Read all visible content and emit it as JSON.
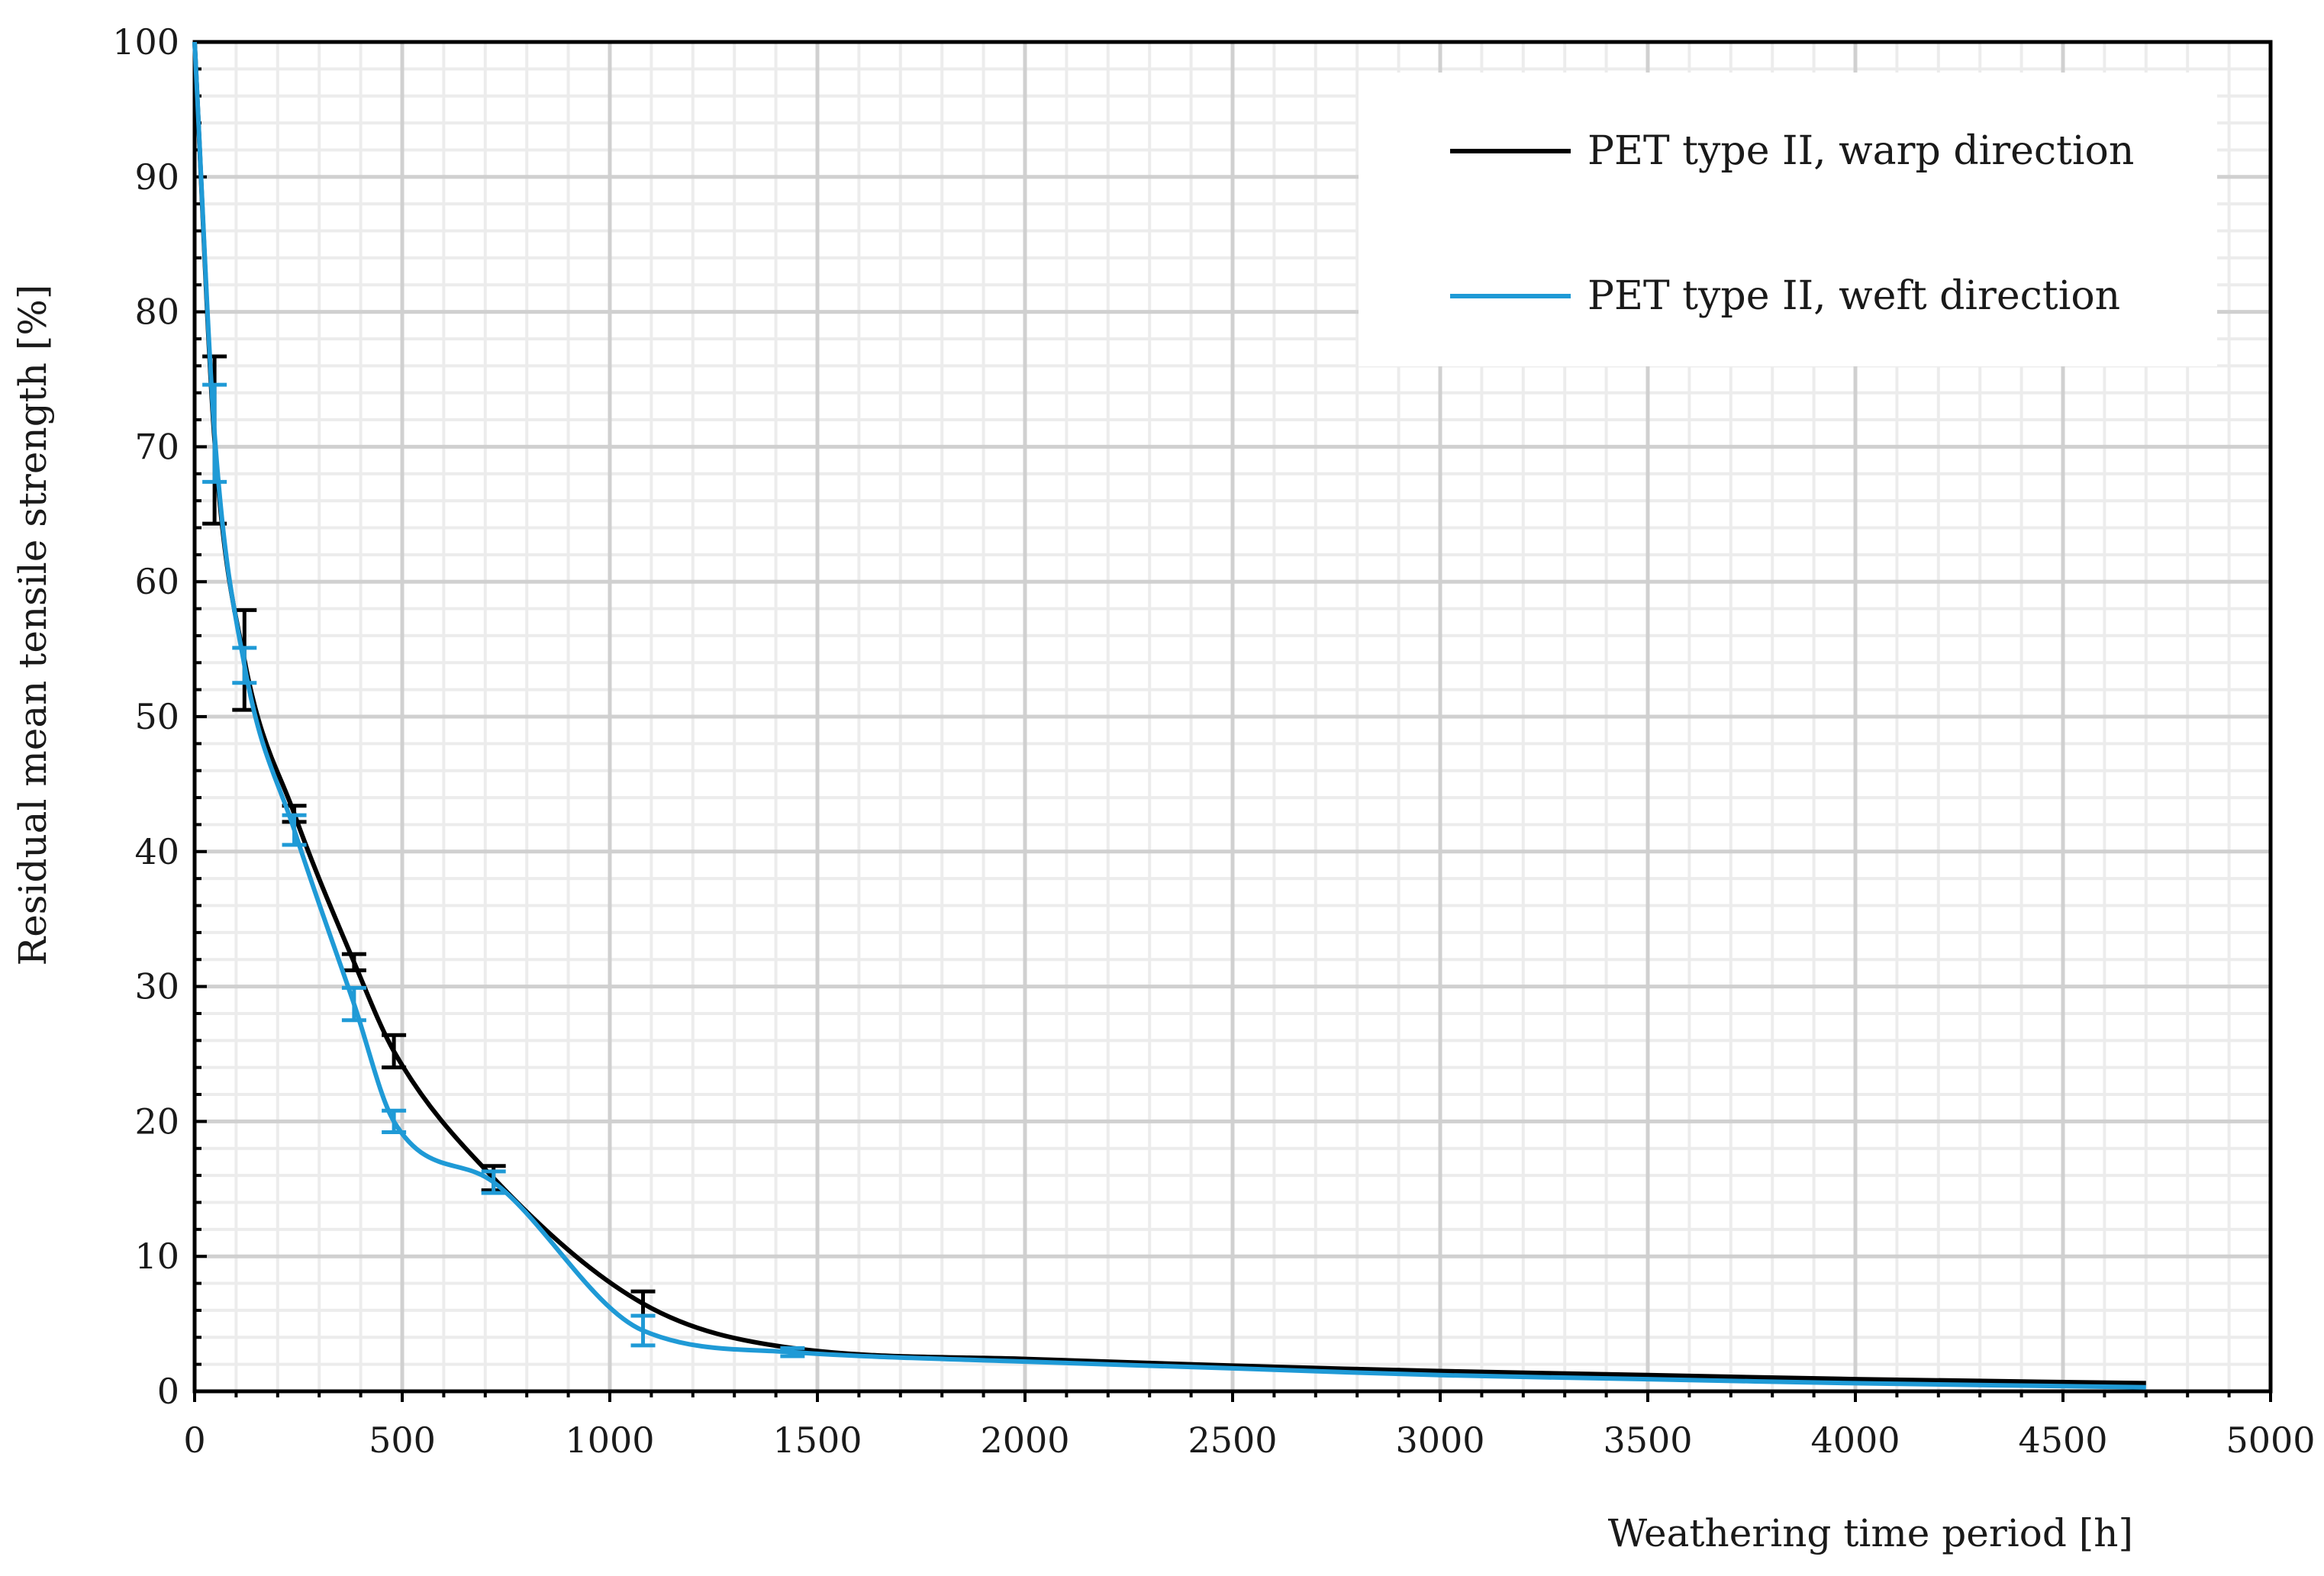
{
  "chart_data": {
    "type": "line",
    "title": "",
    "xlabel": "Weathering time period [h]",
    "ylabel": "Residual mean tensile strength [%]",
    "xlim": [
      0,
      5000
    ],
    "ylim": [
      0,
      100
    ],
    "x_ticks": [
      0,
      500,
      1000,
      1500,
      2000,
      2500,
      3000,
      3500,
      4000,
      4500,
      5000
    ],
    "y_ticks": [
      0,
      10,
      20,
      30,
      40,
      50,
      60,
      70,
      80,
      90,
      100
    ],
    "x_tick_labels": [
      "0",
      "500",
      "1000",
      "1500",
      "2000",
      "2500",
      "3000",
      "3500",
      "4000",
      "4500",
      "5000"
    ],
    "y_tick_labels": [
      "0",
      "10",
      "20",
      "30",
      "40",
      "50",
      "60",
      "70",
      "80",
      "90",
      "100"
    ],
    "grid": true,
    "legend_position": "top-right",
    "series": [
      {
        "name": "PET type II, warp direction",
        "color": "#000000",
        "x": [
          0,
          48,
          120,
          240,
          384,
          480,
          720,
          1080,
          1440,
          2000,
          2500,
          3000,
          3500,
          4000,
          4700
        ],
        "y": [
          100,
          70.5,
          54.2,
          42.8,
          31.8,
          25.2,
          15.8,
          6.5,
          3.2,
          2.4,
          1.9,
          1.5,
          1.2,
          0.9,
          0.6
        ],
        "err": [
          null,
          6.2,
          3.7,
          0.6,
          0.6,
          1.2,
          0.9,
          0.9,
          null,
          null,
          null,
          null,
          null,
          null,
          null
        ]
      },
      {
        "name": "PET type II, weft direction",
        "color": "#1f9ad6",
        "x": [
          0,
          48,
          120,
          240,
          384,
          480,
          720,
          1080,
          1440,
          2000,
          2500,
          3000,
          3500,
          4000,
          4700
        ],
        "y": [
          100,
          71.0,
          53.8,
          41.6,
          28.7,
          20.0,
          15.5,
          4.5,
          2.9,
          2.2,
          1.7,
          1.2,
          0.9,
          0.6,
          0.3
        ],
        "err": [
          null,
          3.6,
          1.3,
          1.1,
          1.2,
          0.8,
          0.8,
          1.1,
          0.3,
          null,
          null,
          null,
          null,
          null,
          null
        ]
      }
    ]
  }
}
